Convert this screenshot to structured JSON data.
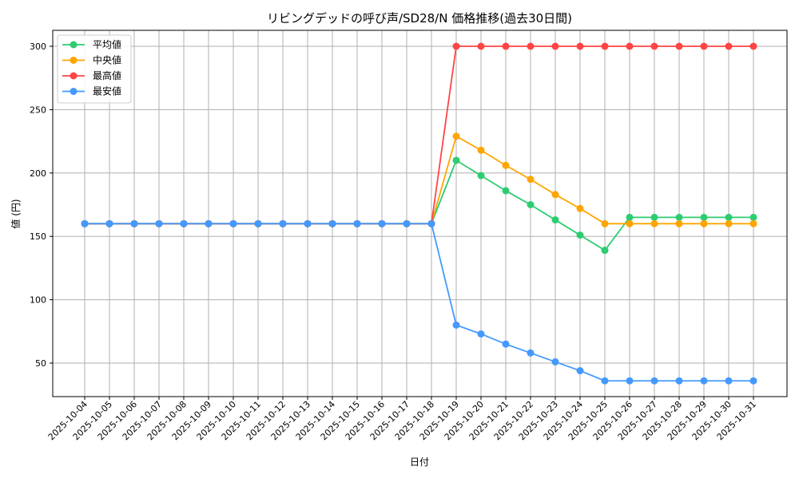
{
  "chart_data": {
    "type": "line",
    "title": "リビングデッドの呼び声/SD28/N 価格推移(過去30日間)",
    "xlabel": "日付",
    "ylabel": "値 (円)",
    "ylim": [
      22,
      313
    ],
    "yticks": [
      50,
      100,
      150,
      200,
      250,
      300
    ],
    "grid": true,
    "legend_position": "top-left",
    "x": [
      "2025-10-04",
      "2025-10-05",
      "2025-10-06",
      "2025-10-07",
      "2025-10-08",
      "2025-10-09",
      "2025-10-10",
      "2025-10-11",
      "2025-10-12",
      "2025-10-13",
      "2025-10-14",
      "2025-10-15",
      "2025-10-16",
      "2025-10-17",
      "2025-10-18",
      "2025-10-19",
      "2025-10-20",
      "2025-10-21",
      "2025-10-22",
      "2025-10-23",
      "2025-10-24",
      "2025-10-25",
      "2025-10-26",
      "2025-10-27",
      "2025-10-28",
      "2025-10-29",
      "2025-10-30",
      "2025-10-31"
    ],
    "series": [
      {
        "name": "平均値",
        "color": "#2ecc71",
        "values": [
          160,
          160,
          160,
          160,
          160,
          160,
          160,
          160,
          160,
          160,
          160,
          160,
          160,
          160,
          160,
          210,
          198,
          186,
          175,
          163,
          151,
          139,
          165,
          165,
          165,
          165,
          165,
          165
        ]
      },
      {
        "name": "中央値",
        "color": "#ffa500",
        "values": [
          160,
          160,
          160,
          160,
          160,
          160,
          160,
          160,
          160,
          160,
          160,
          160,
          160,
          160,
          160,
          229,
          218,
          206,
          195,
          183,
          172,
          160,
          160,
          160,
          160,
          160,
          160,
          160
        ]
      },
      {
        "name": "最高値",
        "color": "#ff4444",
        "values": [
          160,
          160,
          160,
          160,
          160,
          160,
          160,
          160,
          160,
          160,
          160,
          160,
          160,
          160,
          160,
          300,
          300,
          300,
          300,
          300,
          300,
          300,
          300,
          300,
          300,
          300,
          300,
          300
        ]
      },
      {
        "name": "最安値",
        "color": "#4499ff",
        "values": [
          160,
          160,
          160,
          160,
          160,
          160,
          160,
          160,
          160,
          160,
          160,
          160,
          160,
          160,
          160,
          80,
          73,
          65,
          58,
          51,
          44,
          36,
          36,
          36,
          36,
          36,
          36,
          36
        ]
      }
    ]
  }
}
